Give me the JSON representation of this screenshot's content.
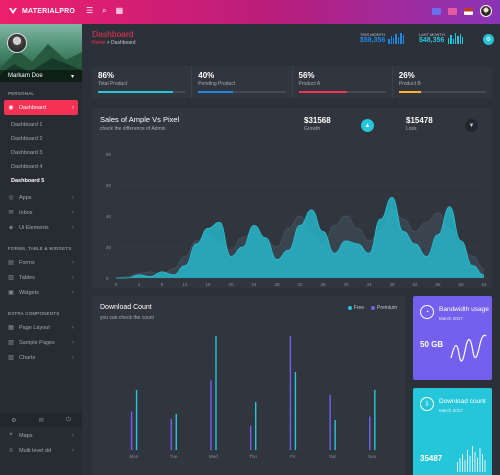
{
  "app": {
    "name": "MATERIALPRO"
  },
  "topbar": {
    "icons": [
      "menu-icon",
      "search-icon",
      "apps-icon"
    ],
    "right_icons": [
      "flag-icon",
      "mail-icon",
      "flag-us-icon",
      "avatar"
    ]
  },
  "sidebar": {
    "user_name": "Markarn Doe",
    "sections": {
      "personal": "PERSONAL",
      "forms": "FORMS, TABLE & WIDGETS",
      "extra": "EXTRA COMPONENTS"
    },
    "dashboard": "Dashboard",
    "dashboard_items": [
      "Dashboard 1",
      "Dashboard 2",
      "Dashboard 3",
      "Dashboard 4",
      "Dashboard 5"
    ],
    "main_items": [
      "Apps",
      "Inbox",
      "Ui Elements"
    ],
    "form_items": [
      "Forms",
      "Tables",
      "Widgets"
    ],
    "extra_items": [
      "Page Layout",
      "Sample Pages",
      "Charts"
    ],
    "bottom_items": [
      "Maps",
      "Multi level dd"
    ]
  },
  "pagebar": {
    "title": "Dashboard",
    "crumb_home": "Home",
    "crumb_sep": ">",
    "crumb_current": "Dashboard",
    "this_month_label": "THIS MONTH",
    "this_month_value": "$58,356",
    "last_month_label": "LAST MONTH",
    "last_month_value": "$48,356"
  },
  "kpis": [
    {
      "value": "86%",
      "label": "Total Product",
      "progress": 0.86,
      "color": "#26c6da"
    },
    {
      "value": "40%",
      "label": "Pending Product",
      "progress": 0.4,
      "color": "#1e88e5"
    },
    {
      "value": "56%",
      "label": "Product A",
      "progress": 0.56,
      "color": "#f33155"
    },
    {
      "value": "26%",
      "label": "Product B",
      "progress": 0.26,
      "color": "#ffb22b"
    }
  ],
  "sales": {
    "title": "Sales of Ample Vs Pixel",
    "subtitle": "check the difference of Admin",
    "growth_value": "$31568",
    "growth_label": "Growth",
    "loss_value": "$15478",
    "loss_label": "Loss"
  },
  "chart_data": [
    {
      "type": "area",
      "ylim": [
        0,
        80
      ],
      "x": [
        0,
        2,
        4,
        6,
        8,
        10,
        12,
        14,
        16,
        18,
        20,
        22,
        24,
        26,
        28,
        30,
        32,
        34,
        36,
        38,
        40,
        42,
        44,
        46,
        48,
        50,
        52,
        54,
        56,
        58,
        60,
        62,
        64
      ],
      "y_ticks": [
        0,
        20,
        40,
        60,
        80
      ],
      "x_tick_labels": [
        "0",
        "2",
        "4",
        "6",
        "8",
        "10",
        "12",
        "14",
        "16",
        "18",
        "20",
        "22",
        "24",
        "26",
        "28",
        "30",
        "32",
        "34",
        "36",
        "38",
        "40",
        "42",
        "44",
        "46",
        "48",
        "50",
        "52",
        "54",
        "56",
        "58",
        "60",
        "62",
        "64"
      ],
      "series": [
        {
          "values": [
            0,
            1,
            3,
            4,
            2,
            6,
            14,
            24,
            28,
            22,
            18,
            26,
            30,
            24,
            20,
            32,
            40,
            28,
            22,
            34,
            40,
            32,
            24,
            30,
            44,
            38,
            30,
            36,
            42,
            32,
            20,
            14,
            6
          ],
          "color": "#3c4752"
        },
        {
          "values": [
            0,
            0,
            2,
            1,
            4,
            2,
            8,
            22,
            32,
            36,
            14,
            20,
            34,
            26,
            12,
            18,
            34,
            44,
            30,
            16,
            24,
            22,
            16,
            38,
            52,
            30,
            22,
            14,
            28,
            46,
            24,
            8,
            2
          ],
          "color": "#26c6da"
        }
      ]
    },
    {
      "type": "bar",
      "categories": [
        "Mon",
        "Tue",
        "Wed",
        "Thu",
        "Fri",
        "Sat",
        "Sun"
      ],
      "series": [
        {
          "name": "Free",
          "values": [
            50,
            30,
            95,
            40,
            65,
            25,
            50
          ],
          "color": "#26c6da"
        },
        {
          "name": "Premium",
          "values": [
            32,
            26,
            58,
            20,
            95,
            46,
            28
          ],
          "color": "#7460ee"
        }
      ]
    }
  ],
  "download": {
    "title": "Download Count",
    "subtitle": "you can check the count",
    "legend_free": "Free",
    "legend_premium": "Premium"
  },
  "bandwidth": {
    "title": "Bandwidth usage",
    "subtitle": "March 2017",
    "value": "50 GB"
  },
  "downloads": {
    "title": "Download count",
    "subtitle": "March 2017",
    "value": "35487"
  }
}
